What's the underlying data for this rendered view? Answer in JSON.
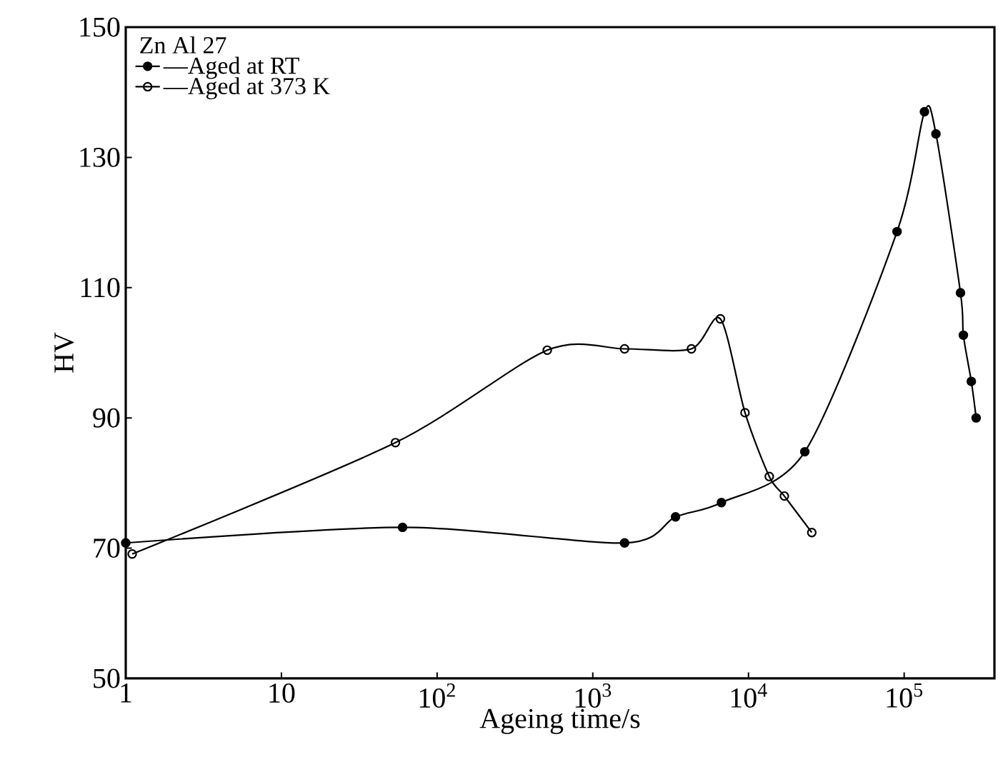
{
  "chart_data": {
    "type": "line",
    "xlabel": "Ageing time/s",
    "ylabel": "HV",
    "legend_title": "Zn Al 27",
    "log": "x",
    "xlim": [
      1,
      380000
    ],
    "ylim": [
      50,
      150
    ],
    "xticks": [
      1,
      10,
      {
        "value": 100,
        "label": "10$^{2}$"
      },
      {
        "value": 1000,
        "label": "10$^{3}$"
      },
      {
        "value": 10000,
        "label": "10$^{4}$"
      },
      {
        "value": 100000,
        "label": "10$^{5}$"
      }
    ],
    "yticks": [
      50,
      70,
      90,
      110,
      130,
      150
    ],
    "legend": "top left",
    "line_style": "solid",
    "series": [
      {
        "name": "—Aged at RT",
        "color": "#000000",
        "marker": "circle",
        "x": [
          1,
          60,
          1600,
          3400,
          6700,
          23000,
          90000,
          135000,
          160000,
          230000,
          240000,
          270000,
          290000
        ],
        "values": [
          70.8,
          73.2,
          70.8,
          74.8,
          77,
          84.8,
          118.6,
          137,
          133.6,
          109.2,
          102.7,
          95.6,
          90
        ]
      },
      {
        "name": "—Aged at 373 K",
        "color": "#000000",
        "marker": "open circle",
        "x": [
          1.1,
          54,
          510,
          1600,
          4300,
          6600,
          9500,
          13600,
          17000,
          25500
        ],
        "values": [
          69.1,
          86.2,
          100.4,
          100.6,
          100.6,
          105.2,
          90.8,
          81,
          78,
          72.4
        ]
      }
    ]
  }
}
